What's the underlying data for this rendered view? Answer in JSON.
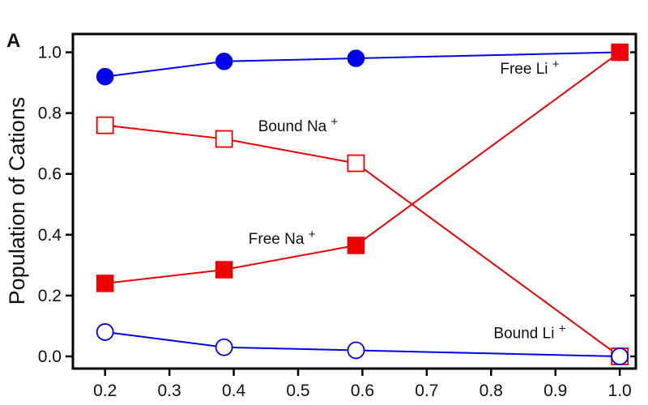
{
  "chart_data": {
    "type": "line",
    "panel_label": "A",
    "title": "",
    "xlabel": "",
    "ylabel": "Population of Cations",
    "xlim": [
      0.15,
      1.025
    ],
    "ylim": [
      -0.04,
      1.06
    ],
    "x_ticks": [
      0.2,
      0.3,
      0.4,
      0.5,
      0.6,
      0.7,
      0.8,
      0.9,
      1.0
    ],
    "x_tick_labels": [
      "0.2",
      "0.3",
      "0.4",
      "0.5",
      "0.6",
      "0.7",
      "0.8",
      "0.9",
      "1.0"
    ],
    "y_ticks": [
      0.0,
      0.2,
      0.4,
      0.6,
      0.8,
      1.0
    ],
    "y_tick_labels": [
      "0.0",
      "0.2",
      "0.4",
      "0.6",
      "0.8",
      "1.0"
    ],
    "grid": false,
    "legend": "none",
    "series": [
      {
        "name": "Free Li",
        "label_base": "Free Li",
        "label_sup": "+",
        "color": "#0000ee",
        "marker": "filled-circle",
        "x": [
          0.2,
          0.385,
          0.59,
          1.0
        ],
        "y": [
          0.92,
          0.97,
          0.98,
          1.0
        ]
      },
      {
        "name": "Bound Na",
        "label_base": "Bound Na",
        "label_sup": "+",
        "color": "#ee0000",
        "marker": "open-square",
        "x": [
          0.2,
          0.385,
          0.59,
          1.0
        ],
        "y": [
          0.76,
          0.715,
          0.635,
          0.0
        ]
      },
      {
        "name": "Free Na",
        "label_base": "Free Na",
        "label_sup": "+",
        "color": "#ee0000",
        "marker": "filled-square",
        "x": [
          0.2,
          0.385,
          0.59,
          1.0
        ],
        "y": [
          0.24,
          0.285,
          0.365,
          1.0
        ]
      },
      {
        "name": "Bound Li",
        "label_base": "Bound Li",
        "label_sup": "+",
        "color": "#0000ee",
        "marker": "open-circle",
        "x": [
          0.2,
          0.385,
          0.59,
          1.0
        ],
        "y": [
          0.08,
          0.03,
          0.02,
          0.0
        ]
      }
    ],
    "annotations": [
      {
        "series": "Free Li",
        "base": "Free Li",
        "sup": "+",
        "x": 0.86,
        "y": 0.93
      },
      {
        "series": "Bound Na",
        "base": "Bound Na",
        "sup": "+",
        "x": 0.5,
        "y": 0.74
      },
      {
        "series": "Free Na",
        "base": "Free Na",
        "sup": "+",
        "x": 0.475,
        "y": 0.37
      },
      {
        "series": "Bound Li",
        "base": "Bound Li",
        "sup": "+",
        "x": 0.86,
        "y": 0.06
      }
    ]
  }
}
